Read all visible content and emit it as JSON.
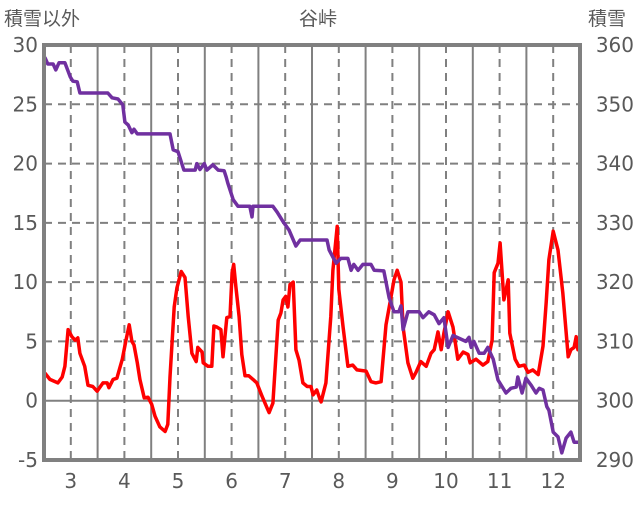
{
  "chart_data": {
    "type": "line",
    "title": "谷峠",
    "ylabel_left": "積雪以外",
    "ylabel_right": "積雪",
    "xlim": [
      2.5,
      12.5
    ],
    "ylim_left": [
      -5,
      30
    ],
    "ylim_right": [
      290,
      360
    ],
    "x_ticks": [
      3,
      4,
      5,
      6,
      7,
      8,
      9,
      10,
      11,
      12
    ],
    "y_ticks_left": [
      -5,
      0,
      5,
      10,
      15,
      20,
      25,
      30
    ],
    "y_ticks_right": [
      290,
      300,
      310,
      320,
      330,
      340,
      350,
      360
    ],
    "grid": true,
    "colors": {
      "temperature": "#ff0000",
      "snow_depth": "#7030a0",
      "axis": "#808080"
    },
    "series": [
      {
        "name": "積雪以外",
        "axis": "left",
        "color": "#ff0000",
        "points": [
          [
            2.52,
            2.3
          ],
          [
            2.61,
            1.8
          ],
          [
            2.76,
            1.5
          ],
          [
            2.84,
            2.0
          ],
          [
            2.89,
            2.9
          ],
          [
            2.95,
            6.0
          ],
          [
            3.02,
            5.4
          ],
          [
            3.08,
            5.1
          ],
          [
            3.13,
            5.3
          ],
          [
            3.17,
            4.0
          ],
          [
            3.26,
            2.9
          ],
          [
            3.32,
            1.3
          ],
          [
            3.41,
            1.2
          ],
          [
            3.49,
            0.8
          ],
          [
            3.6,
            1.5
          ],
          [
            3.68,
            1.5
          ],
          [
            3.71,
            1.1
          ],
          [
            3.79,
            1.8
          ],
          [
            3.86,
            1.9
          ],
          [
            3.96,
            3.5
          ],
          [
            4.03,
            5.1
          ],
          [
            4.09,
            6.4
          ],
          [
            4.14,
            5.0
          ],
          [
            4.18,
            4.7
          ],
          [
            4.24,
            3.2
          ],
          [
            4.29,
            1.8
          ],
          [
            4.37,
            0.25
          ],
          [
            4.44,
            0.3
          ],
          [
            4.51,
            -0.3
          ],
          [
            4.57,
            -1.3
          ],
          [
            4.66,
            -2.2
          ],
          [
            4.76,
            -2.6
          ],
          [
            4.81,
            -2.0
          ],
          [
            4.85,
            2.0
          ],
          [
            4.93,
            7.9
          ],
          [
            4.98,
            9.5
          ],
          [
            5.06,
            10.9
          ],
          [
            5.13,
            10.4
          ],
          [
            5.19,
            7.1
          ],
          [
            5.26,
            4.0
          ],
          [
            5.34,
            3.3
          ],
          [
            5.37,
            4.5
          ],
          [
            5.45,
            4.1
          ],
          [
            5.47,
            3.2
          ],
          [
            5.56,
            2.9
          ],
          [
            5.63,
            2.9
          ],
          [
            5.67,
            6.3
          ],
          [
            5.73,
            6.2
          ],
          [
            5.8,
            6.0
          ],
          [
            5.84,
            3.7
          ],
          [
            5.91,
            7.0
          ],
          [
            5.97,
            7.1
          ],
          [
            6.01,
            10.8
          ],
          [
            6.04,
            11.5
          ],
          [
            6.08,
            9.6
          ],
          [
            6.14,
            7.1
          ],
          [
            6.19,
            3.9
          ],
          [
            6.25,
            2.1
          ],
          [
            6.32,
            2.1
          ],
          [
            6.4,
            1.8
          ],
          [
            6.47,
            1.5
          ],
          [
            6.57,
            0.35
          ],
          [
            6.66,
            -0.6
          ],
          [
            6.7,
            -1.0
          ],
          [
            6.77,
            -0.2
          ],
          [
            6.87,
            6.8
          ],
          [
            6.92,
            7.4
          ],
          [
            6.96,
            8.5
          ],
          [
            7.01,
            8.8
          ],
          [
            7.05,
            7.9
          ],
          [
            7.09,
            9.8
          ],
          [
            7.15,
            10.0
          ],
          [
            7.2,
            4.3
          ],
          [
            7.26,
            3.4
          ],
          [
            7.33,
            1.5
          ],
          [
            7.41,
            1.2
          ],
          [
            7.48,
            1.2
          ],
          [
            7.52,
            0.5
          ],
          [
            7.59,
            0.9
          ],
          [
            7.65,
            0.1
          ],
          [
            7.67,
            -0.1
          ],
          [
            7.76,
            1.5
          ],
          [
            7.85,
            7.1
          ],
          [
            7.89,
            11.0
          ],
          [
            7.97,
            14.7
          ],
          [
            8.0,
            9.4
          ],
          [
            8.08,
            6.2
          ],
          [
            8.17,
            2.9
          ],
          [
            8.26,
            3.0
          ],
          [
            8.34,
            2.6
          ],
          [
            8.51,
            2.5
          ],
          [
            8.6,
            1.6
          ],
          [
            8.69,
            1.5
          ],
          [
            8.79,
            1.6
          ],
          [
            8.88,
            6.4
          ],
          [
            8.96,
            8.4
          ],
          [
            9.03,
            10.2
          ],
          [
            9.09,
            11.0
          ],
          [
            9.16,
            10.0
          ],
          [
            9.2,
            6.2
          ],
          [
            9.29,
            3.2
          ],
          [
            9.38,
            1.9
          ],
          [
            9.44,
            2.4
          ],
          [
            9.53,
            3.3
          ],
          [
            9.63,
            2.9
          ],
          [
            9.72,
            4.0
          ],
          [
            9.78,
            4.3
          ],
          [
            9.85,
            5.8
          ],
          [
            9.91,
            4.3
          ],
          [
            9.96,
            5.7
          ],
          [
            10.04,
            7.5
          ],
          [
            10.13,
            6.2
          ],
          [
            10.22,
            3.5
          ],
          [
            10.32,
            4.1
          ],
          [
            10.41,
            3.9
          ],
          [
            10.45,
            3.2
          ],
          [
            10.56,
            3.5
          ],
          [
            10.69,
            3.0
          ],
          [
            10.78,
            3.3
          ],
          [
            10.86,
            5.1
          ],
          [
            10.9,
            10.8
          ],
          [
            10.97,
            11.6
          ],
          [
            11.01,
            13.3
          ],
          [
            11.08,
            8.5
          ],
          [
            11.16,
            10.2
          ],
          [
            11.19,
            5.7
          ],
          [
            11.29,
            3.5
          ],
          [
            11.36,
            2.9
          ],
          [
            11.46,
            3.0
          ],
          [
            11.53,
            2.4
          ],
          [
            11.62,
            2.6
          ],
          [
            11.72,
            2.2
          ],
          [
            11.81,
            4.6
          ],
          [
            11.87,
            8.3
          ],
          [
            11.92,
            11.9
          ],
          [
            12.0,
            14.3
          ],
          [
            12.09,
            12.7
          ],
          [
            12.18,
            9.1
          ],
          [
            12.28,
            3.7
          ],
          [
            12.33,
            4.3
          ],
          [
            12.39,
            4.5
          ],
          [
            12.43,
            5.4
          ],
          [
            12.46,
            4.3
          ]
        ]
      },
      {
        "name": "積雪",
        "axis": "right",
        "color": "#7030a0",
        "points": [
          [
            2.52,
            357.8
          ],
          [
            2.57,
            356.8
          ],
          [
            2.67,
            356.8
          ],
          [
            2.72,
            355.8
          ],
          [
            2.78,
            357
          ],
          [
            2.89,
            357
          ],
          [
            2.99,
            354.6
          ],
          [
            3.04,
            353.9
          ],
          [
            3.12,
            353.8
          ],
          [
            3.17,
            351.9
          ],
          [
            3.69,
            351.9
          ],
          [
            3.77,
            351.1
          ],
          [
            3.88,
            350.9
          ],
          [
            3.97,
            349.9
          ],
          [
            4.01,
            347
          ],
          [
            4.07,
            346.5
          ],
          [
            4.14,
            345.2
          ],
          [
            4.18,
            345.8
          ],
          [
            4.24,
            345
          ],
          [
            4.85,
            345
          ],
          [
            4.91,
            342.3
          ],
          [
            5.0,
            342
          ],
          [
            5.11,
            338.9
          ],
          [
            5.32,
            338.9
          ],
          [
            5.35,
            340
          ],
          [
            5.41,
            339
          ],
          [
            5.49,
            340
          ],
          [
            5.54,
            338.9
          ],
          [
            5.65,
            339.8
          ],
          [
            5.75,
            338.9
          ],
          [
            5.86,
            338.8
          ],
          [
            5.9,
            337.7
          ],
          [
            5.93,
            336.7
          ],
          [
            6.03,
            333.9
          ],
          [
            6.12,
            332.8
          ],
          [
            6.34,
            332.8
          ],
          [
            6.38,
            331
          ],
          [
            6.4,
            332.8
          ],
          [
            6.77,
            332.8
          ],
          [
            6.85,
            331.8
          ],
          [
            6.96,
            330.2
          ],
          [
            7.07,
            328.8
          ],
          [
            7.2,
            326.1
          ],
          [
            7.28,
            327.1
          ],
          [
            7.78,
            327.1
          ],
          [
            7.82,
            325.4
          ],
          [
            7.95,
            323.2
          ],
          [
            8.04,
            324
          ],
          [
            8.17,
            324
          ],
          [
            8.23,
            322
          ],
          [
            8.28,
            323
          ],
          [
            8.36,
            322
          ],
          [
            8.45,
            323
          ],
          [
            8.6,
            323
          ],
          [
            8.66,
            322
          ],
          [
            8.84,
            321.9
          ],
          [
            8.94,
            317.3
          ],
          [
            9.03,
            315
          ],
          [
            9.12,
            315
          ],
          [
            9.16,
            316
          ],
          [
            9.2,
            312
          ],
          [
            9.29,
            315
          ],
          [
            9.5,
            315
          ],
          [
            9.57,
            314
          ],
          [
            9.68,
            315
          ],
          [
            9.78,
            314.5
          ],
          [
            9.87,
            313
          ],
          [
            9.96,
            314
          ],
          [
            10.04,
            309
          ],
          [
            10.13,
            311
          ],
          [
            10.37,
            310
          ],
          [
            10.43,
            310.7
          ],
          [
            10.47,
            309
          ],
          [
            10.52,
            310
          ],
          [
            10.62,
            308
          ],
          [
            10.71,
            308
          ],
          [
            10.78,
            309
          ],
          [
            10.88,
            307
          ],
          [
            10.97,
            303.5
          ],
          [
            11.12,
            301.3
          ],
          [
            11.21,
            302.1
          ],
          [
            11.31,
            302.3
          ],
          [
            11.34,
            304
          ],
          [
            11.42,
            301.3
          ],
          [
            11.49,
            303.8
          ],
          [
            11.59,
            302.6
          ],
          [
            11.68,
            301.3
          ],
          [
            11.74,
            302.1
          ],
          [
            11.81,
            301.8
          ],
          [
            11.88,
            299
          ],
          [
            11.92,
            298.4
          ],
          [
            12.0,
            294.7
          ],
          [
            12.09,
            293.9
          ],
          [
            12.16,
            291.2
          ],
          [
            12.24,
            293.7
          ],
          [
            12.33,
            294.7
          ],
          [
            12.39,
            293
          ],
          [
            12.46,
            293
          ]
        ]
      }
    ]
  }
}
